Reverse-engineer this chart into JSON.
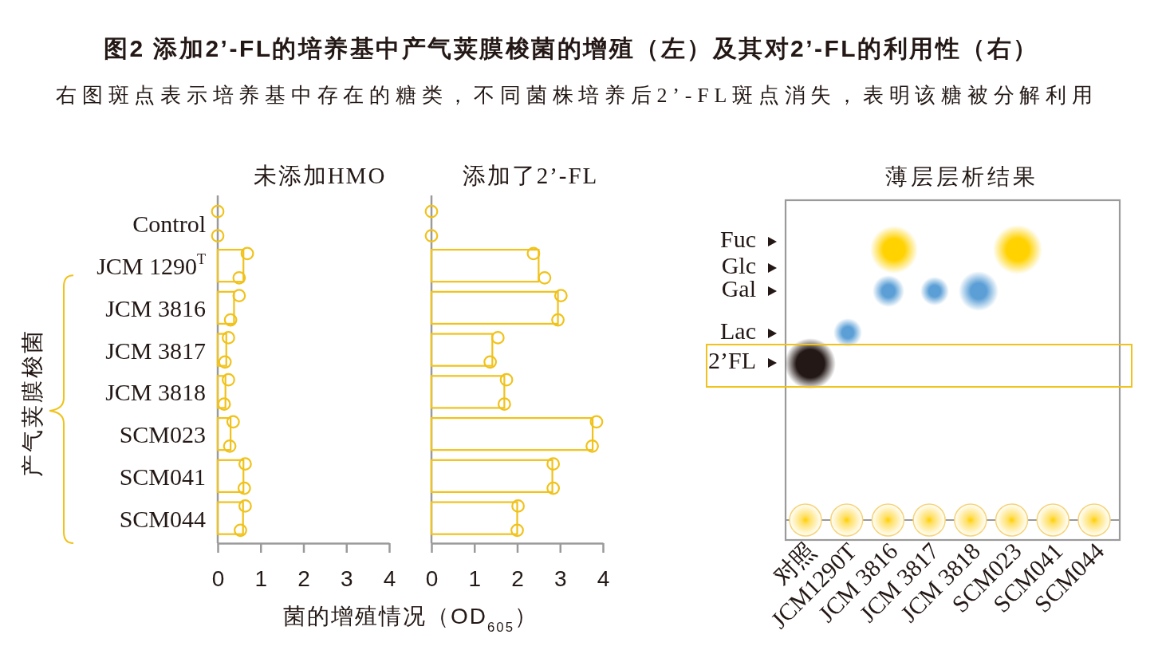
{
  "chart_data": [
    {
      "type": "other",
      "title": "图2 添加2’-FL的培养基中产气荚膜梭菌的增殖（左）及其对2’-FL的利用性（右）",
      "subtitle": "右图斑点表示培养基中存在的糖类，不同菌株培养后2’-FL斑点消失，表明该糖被分解利用"
    },
    {
      "type": "bar",
      "orientation": "horizontal",
      "title": "未添加HMO",
      "xlabel": "菌的增殖情况（OD$_{605}$）",
      "annotations": [
        "产气荚膜梭菌"
      ],
      "categories": [
        "Control",
        "JCM 1290$^{T}$",
        "JCM 3816",
        "JCM 3817",
        "JCM 3818",
        "SCM023",
        "SCM041",
        "SCM044"
      ],
      "xlim": [
        0,
        4
      ],
      "xticks": [
        0,
        1,
        2,
        3,
        4
      ],
      "marker": "circle",
      "series": [
        {
          "type": "bar",
          "color": "#f0c21a",
          "values": [
            null,
            0.6,
            0.38,
            0.2,
            0.18,
            0.3,
            0.6,
            0.59
          ]
        },
        {
          "type": "scatter",
          "color": "#f0c21a",
          "x": [
            "Control",
            "JCM 1290$^{T}$",
            "JCM 3816",
            "JCM 3817",
            "JCM 3818",
            "SCM023",
            "SCM041",
            "SCM044"
          ],
          "values": [
            0,
            0.69,
            0.5,
            0.25,
            0.25,
            0.36,
            0.64,
            0.64
          ]
        },
        {
          "type": "scatter",
          "color": "#f0c21a",
          "x": [
            "Control",
            "JCM 1290$^{T}$",
            "JCM 3816",
            "JCM 3817",
            "JCM 3818",
            "SCM023",
            "SCM041",
            "SCM044"
          ],
          "values": [
            0,
            0.5,
            0.3,
            0.17,
            0.15,
            0.28,
            0.62,
            0.53
          ]
        }
      ]
    },
    {
      "type": "bar",
      "orientation": "horizontal",
      "title": "添加了2’-FL",
      "tick_labels": "x",
      "categories": [
        "Control",
        "JCM 1290$^{T}$",
        "JCM 3816",
        "JCM 3817",
        "JCM 3818",
        "SCM023",
        "SCM041",
        "SCM044"
      ],
      "xlim": [
        0,
        4
      ],
      "xticks": [
        0,
        1,
        2,
        3,
        4
      ],
      "marker": "circle",
      "series": [
        {
          "type": "bar",
          "color": "#f0c21a",
          "values": [
            null,
            2.5,
            2.95,
            1.42,
            1.7,
            3.76,
            2.82,
            2.0
          ]
        },
        {
          "type": "scatter",
          "color": "#f0c21a",
          "x": [
            "Control",
            "JCM 1290$^{T}$",
            "JCM 3816",
            "JCM 3817",
            "JCM 3818",
            "SCM023",
            "SCM041",
            "SCM044"
          ],
          "values": [
            0,
            2.38,
            3.02,
            1.55,
            1.75,
            3.85,
            2.84,
            2.02
          ]
        },
        {
          "type": "scatter",
          "color": "#f0c21a",
          "x": [
            "Control",
            "JCM 1290$^{T}$",
            "JCM 3816",
            "JCM 3817",
            "JCM 3818",
            "SCM023",
            "SCM041",
            "SCM044"
          ],
          "values": [
            0,
            2.64,
            2.95,
            1.37,
            1.7,
            3.75,
            2.84,
            2.0
          ]
        }
      ]
    },
    {
      "type": "other",
      "title": "薄层层析结果",
      "categories": [
        "对照",
        "JCM1290T",
        "JCM 3816",
        "JCM 3817",
        "JCM 3818",
        "SCM023",
        "SCM041",
        "SCM044"
      ],
      "annotations": [
        "Fuc",
        "Glc",
        "Gal",
        "Lac",
        "2’FL"
      ]
    }
  ]
}
